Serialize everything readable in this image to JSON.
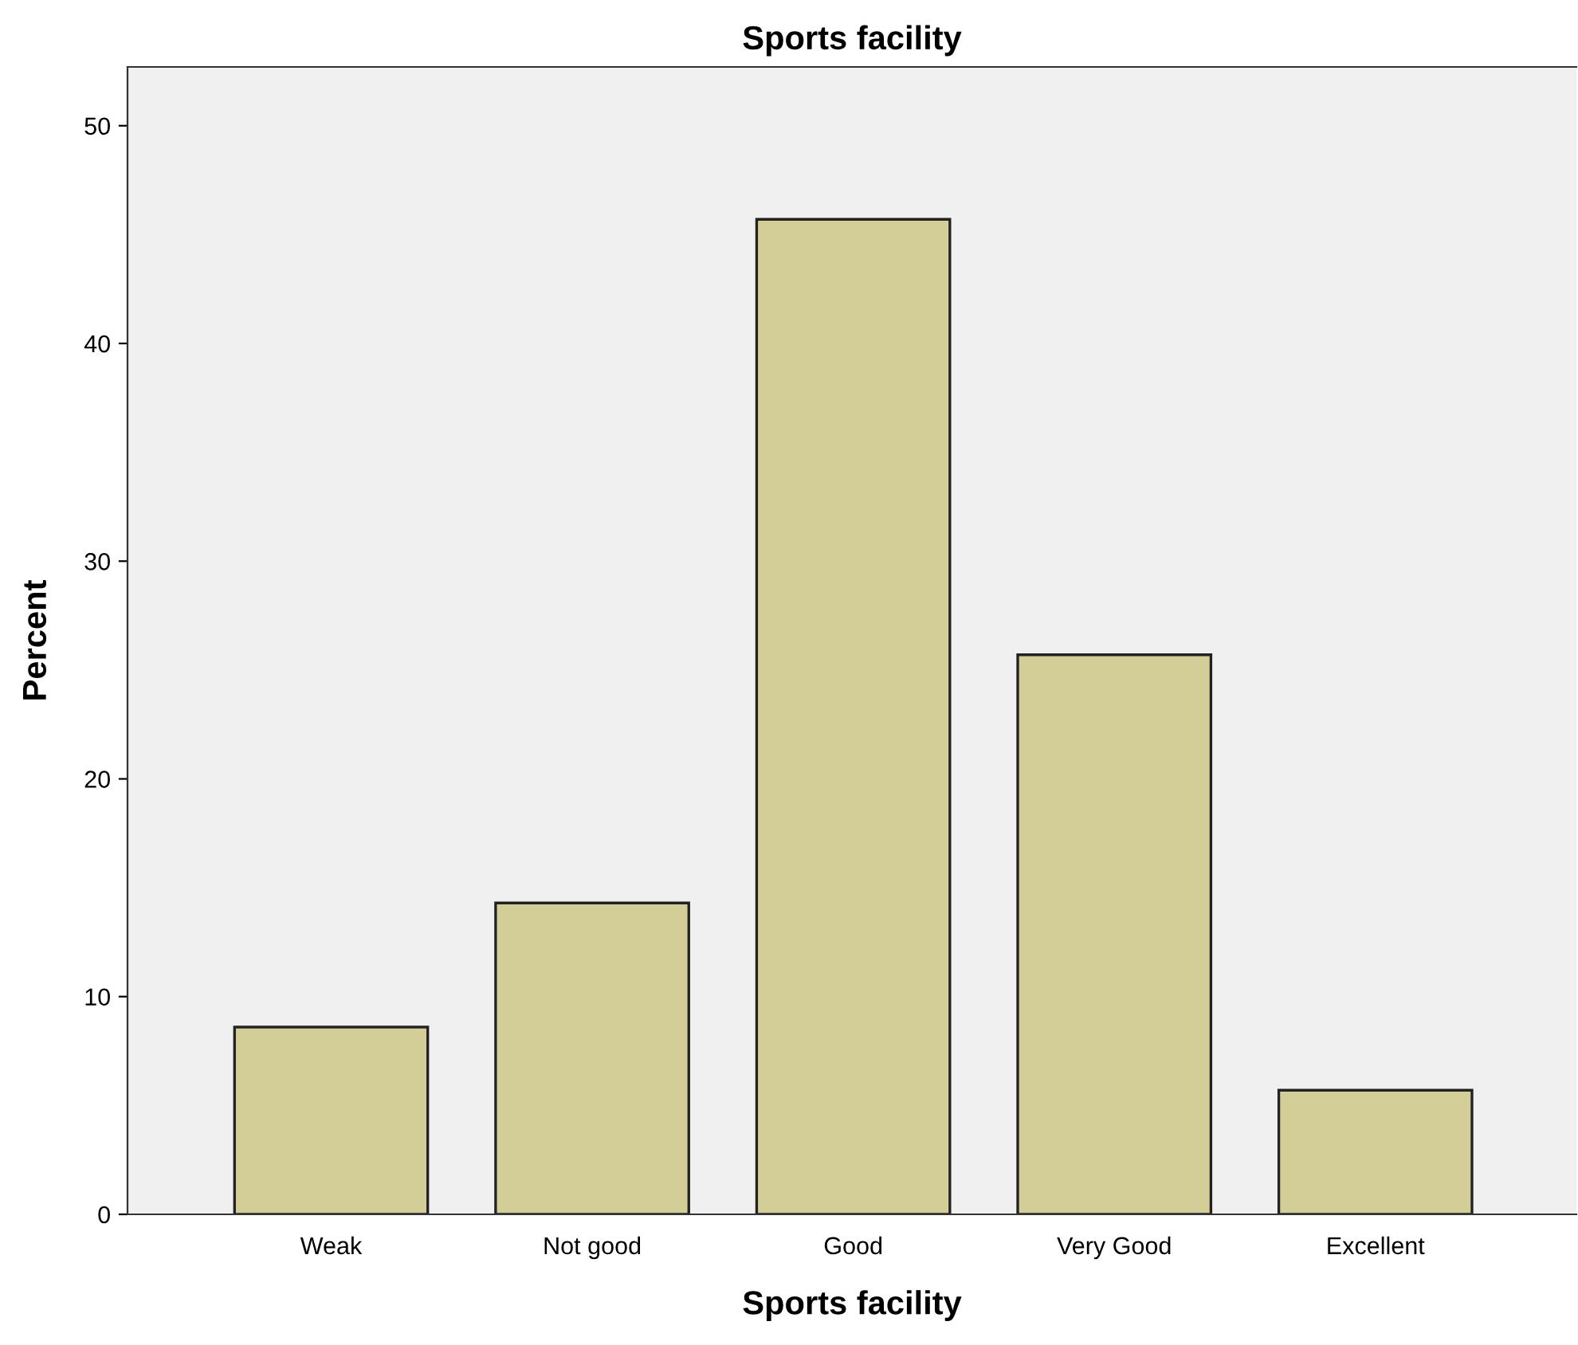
{
  "chart_data": {
    "type": "bar",
    "title": "Sports facility",
    "xlabel": "Sports facility",
    "ylabel": "Percent",
    "categories": [
      "Weak",
      "Not good",
      "Good",
      "Very Good",
      "Excellent"
    ],
    "values": [
      8.6,
      14.3,
      45.7,
      25.7,
      5.7
    ],
    "color": "#d3ce97",
    "ylim": [
      0,
      52.7
    ],
    "yticks": [
      0,
      10,
      20,
      30,
      40,
      50
    ],
    "grid": false,
    "legend": false
  }
}
